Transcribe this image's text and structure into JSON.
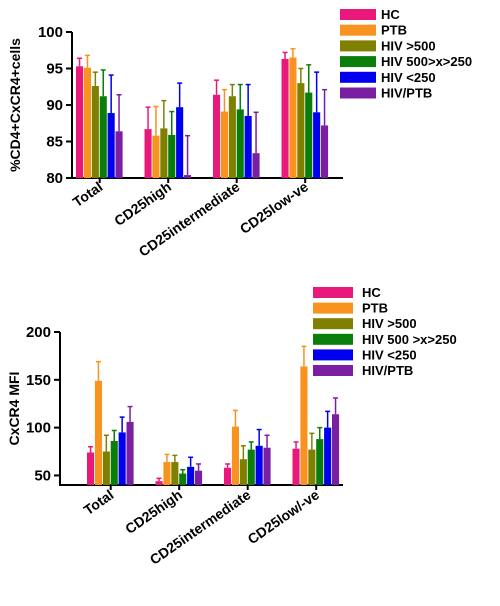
{
  "chart_data": [
    {
      "type": "bar",
      "ylabel": "%CD4+CxCR4+cells",
      "ylim": [
        80,
        100
      ],
      "yticks": [
        "80",
        "85",
        "90",
        "95",
        "100"
      ],
      "categories": [
        "Total",
        "CD25high",
        "CD25intermediate",
        "CD25low-ve"
      ],
      "series": [
        {
          "name": "HC",
          "color": "#e8197a",
          "values": [
            95.3,
            86.7,
            91.4,
            96.3
          ],
          "errors": [
            1.1,
            3.0,
            2.0,
            0.9
          ]
        },
        {
          "name": "PTB",
          "color": "#f7931e",
          "values": [
            95.1,
            85.8,
            89.1,
            96.5
          ],
          "errors": [
            1.7,
            4.0,
            3.0,
            1.2
          ]
        },
        {
          "name": "HIV >500",
          "color": "#808000",
          "values": [
            92.6,
            86.8,
            91.2,
            93.0
          ],
          "errors": [
            1.9,
            3.8,
            1.6,
            2.0
          ]
        },
        {
          "name": "HIV 500>x>250",
          "color": "#0a7d0a",
          "values": [
            91.2,
            85.9,
            89.4,
            91.7
          ],
          "errors": [
            3.6,
            3.2,
            3.4,
            3.8
          ]
        },
        {
          "name": "HIV <250",
          "color": "#0000ee",
          "values": [
            88.9,
            89.7,
            88.5,
            89.0
          ],
          "errors": [
            5.2,
            3.3,
            4.3,
            5.5
          ]
        },
        {
          "name": "HIV/PTB",
          "color": "#7b1fa2",
          "values": [
            86.4,
            80.4,
            83.4,
            87.2
          ],
          "errors": [
            5.0,
            5.4,
            5.6,
            4.9
          ]
        }
      ]
    },
    {
      "type": "bar",
      "ylabel": "CxCR4 MFI",
      "ylim": [
        40,
        200
      ],
      "yticks": [
        "50",
        "100",
        "150",
        "200"
      ],
      "categories": [
        "Total",
        "CD25high",
        "CD25intermediate",
        "CD25low/-ve"
      ],
      "series": [
        {
          "name": "HC",
          "color": "#e8197a",
          "values": [
            74,
            44,
            58,
            78
          ],
          "errors": [
            6,
            3,
            4,
            7
          ]
        },
        {
          "name": "PTB",
          "color": "#f7931e",
          "values": [
            149,
            64,
            101,
            164
          ],
          "errors": [
            20,
            8,
            17,
            21
          ]
        },
        {
          "name": "HIV >500",
          "color": "#808000",
          "values": [
            75,
            64,
            67,
            77
          ],
          "errors": [
            17,
            7,
            14,
            17
          ]
        },
        {
          "name": "HIV  500 >x>250",
          "color": "#0a7d0a",
          "values": [
            86,
            52,
            77,
            88
          ],
          "errors": [
            11,
            4,
            8,
            12
          ]
        },
        {
          "name": "HIV <250",
          "color": "#0000ee",
          "values": [
            95,
            59,
            81,
            100
          ],
          "errors": [
            16,
            10,
            17,
            17
          ]
        },
        {
          "name": "HIV/PTB",
          "color": "#7b1fa2",
          "values": [
            106,
            55,
            79,
            114
          ],
          "errors": [
            16,
            7,
            13,
            17
          ]
        }
      ]
    }
  ]
}
